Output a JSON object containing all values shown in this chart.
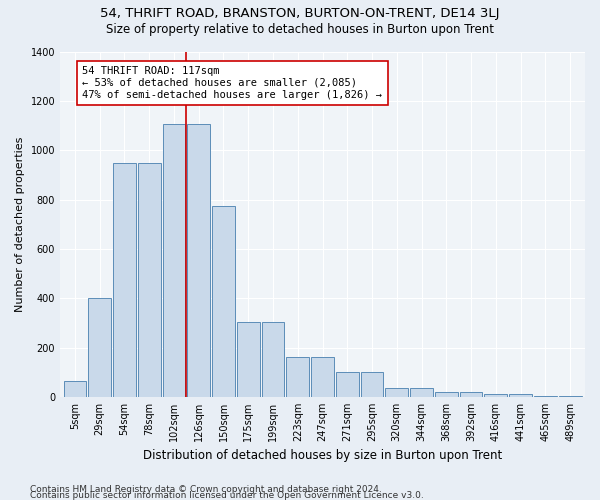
{
  "title": "54, THRIFT ROAD, BRANSTON, BURTON-ON-TRENT, DE14 3LJ",
  "subtitle": "Size of property relative to detached houses in Burton upon Trent",
  "xlabel": "Distribution of detached houses by size in Burton upon Trent",
  "ylabel": "Number of detached properties",
  "footer1": "Contains HM Land Registry data © Crown copyright and database right 2024.",
  "footer2": "Contains public sector information licensed under the Open Government Licence v3.0.",
  "bar_labels": [
    "5sqm",
    "29sqm",
    "54sqm",
    "78sqm",
    "102sqm",
    "126sqm",
    "150sqm",
    "175sqm",
    "199sqm",
    "223sqm",
    "247sqm",
    "271sqm",
    "295sqm",
    "320sqm",
    "344sqm",
    "368sqm",
    "392sqm",
    "416sqm",
    "441sqm",
    "465sqm",
    "489sqm"
  ],
  "bar_values": [
    65,
    400,
    950,
    950,
    1105,
    1105,
    775,
    305,
    305,
    160,
    160,
    100,
    100,
    35,
    35,
    18,
    18,
    10,
    10,
    3,
    3
  ],
  "bar_color": "#c9d9ea",
  "bar_edge_color": "#5b8db8",
  "vline_color": "#cc0000",
  "vline_x_idx": 4.5,
  "annotation_text": "54 THRIFT ROAD: 117sqm\n← 53% of detached houses are smaller (2,085)\n47% of semi-detached houses are larger (1,826) →",
  "annotation_box_color": "white",
  "annotation_box_edge": "#cc0000",
  "ylim": [
    0,
    1400
  ],
  "yticks": [
    0,
    200,
    400,
    600,
    800,
    1000,
    1200,
    1400
  ],
  "bg_color": "#e8eef5",
  "plot_bg_color": "#f0f4f8",
  "title_fontsize": 9.5,
  "subtitle_fontsize": 8.5,
  "xlabel_fontsize": 8.5,
  "ylabel_fontsize": 8.0,
  "tick_fontsize": 7.0,
  "annotation_fontsize": 7.5,
  "footer_fontsize": 6.5
}
